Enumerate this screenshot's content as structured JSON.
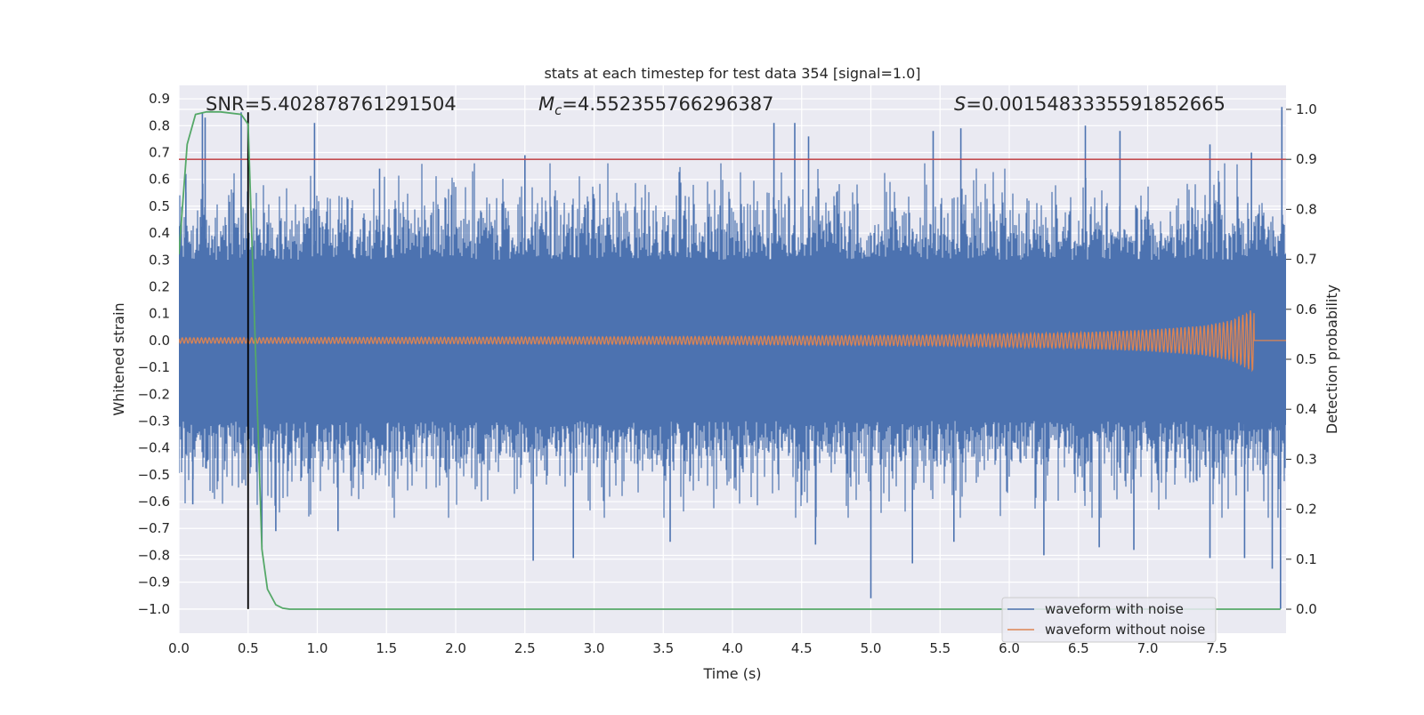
{
  "chart_data": {
    "type": "line",
    "title": "stats at each timestep for test data 354 [signal=1.0]",
    "xlabel": "Time (s)",
    "ylabel": "Whitened strain",
    "ylabel_right": "Detection probability",
    "xlim": [
      0.0,
      8.0
    ],
    "ylim": [
      -1.09,
      0.95
    ],
    "ylim_right": [
      -0.048,
      1.048
    ],
    "grid": true,
    "legend_position": "lower-right",
    "x_ticks": [
      "0.0",
      "0.5",
      "1.0",
      "1.5",
      "2.0",
      "2.5",
      "3.0",
      "3.5",
      "4.0",
      "4.5",
      "5.0",
      "5.5",
      "6.0",
      "6.5",
      "7.0",
      "7.5"
    ],
    "y_ticks": [
      "0.9",
      "0.8",
      "0.7",
      "0.6",
      "0.5",
      "0.4",
      "0.3",
      "0.2",
      "0.1",
      "0.0",
      "−0.1",
      "−0.2",
      "−0.3",
      "−0.4",
      "−0.5",
      "−0.6",
      "−0.7",
      "−0.8",
      "−0.9",
      "−1.0"
    ],
    "y_ticks_right": [
      "1.0",
      "0.9",
      "0.8",
      "0.7",
      "0.6",
      "0.5",
      "0.4",
      "0.3",
      "0.2",
      "0.1",
      "0.0"
    ],
    "annotations": {
      "snr": {
        "prefix": "SNR",
        "value": "=5.402878761291504",
        "x": 0.2,
        "y": 0.9
      },
      "mc": {
        "prefix": "M",
        "sub": "c",
        "value": "=4.552355766296387",
        "x": 2.6,
        "y": 0.9
      },
      "s": {
        "prefix": "S",
        "value": "=0.0015483335591852665",
        "x": 5.6,
        "y": 0.9
      }
    },
    "threshold": {
      "y_right": 0.9,
      "color": "#c44e52"
    },
    "event_line": {
      "x": 0.5,
      "y_start": -1.0,
      "y_end": 0.85,
      "color": "#000000"
    },
    "series": [
      {
        "name": "waveform with noise",
        "color": "#4c72b0",
        "axis": "left",
        "duration": 8.0,
        "core_amplitude": 0.3,
        "peaks_up": [
          [
            0.05,
            0.62
          ],
          [
            0.17,
            0.85
          ],
          [
            0.19,
            0.83
          ],
          [
            0.45,
            0.85
          ],
          [
            0.98,
            0.81
          ],
          [
            1.45,
            0.64
          ],
          [
            2.5,
            0.69
          ],
          [
            4.3,
            0.81
          ],
          [
            4.45,
            0.81
          ],
          [
            4.55,
            0.76
          ],
          [
            5.45,
            0.78
          ],
          [
            5.65,
            0.79
          ],
          [
            6.55,
            0.8
          ],
          [
            6.8,
            0.78
          ],
          [
            7.45,
            0.73
          ],
          [
            7.75,
            0.7
          ],
          [
            7.97,
            0.87
          ]
        ],
        "peaks_down": [
          [
            0.1,
            -0.61
          ],
          [
            0.6,
            -0.77
          ],
          [
            0.7,
            -0.71
          ],
          [
            1.15,
            -0.71
          ],
          [
            2.56,
            -0.82
          ],
          [
            2.85,
            -0.81
          ],
          [
            3.55,
            -0.75
          ],
          [
            4.6,
            -0.76
          ],
          [
            5.0,
            -0.96
          ],
          [
            5.3,
            -0.83
          ],
          [
            5.6,
            -0.75
          ],
          [
            6.25,
            -0.8
          ],
          [
            6.65,
            -0.77
          ],
          [
            6.9,
            -0.78
          ],
          [
            7.45,
            -0.81
          ],
          [
            7.7,
            -0.81
          ],
          [
            7.9,
            -0.85
          ],
          [
            7.96,
            -1.0
          ]
        ]
      },
      {
        "name": "waveform without noise",
        "color": "#dd8452",
        "axis": "left",
        "merger_time": 7.77,
        "envelope": {
          "x": [
            0.0,
            2.0,
            4.0,
            5.5,
            6.5,
            7.0,
            7.4,
            7.6,
            7.7,
            7.77
          ],
          "amplitude": [
            0.01,
            0.012,
            0.015,
            0.02,
            0.03,
            0.04,
            0.055,
            0.075,
            0.1,
            0.12
          ]
        }
      },
      {
        "name": "detection probability",
        "color": "#55a868",
        "axis": "right",
        "x": [
          0.0,
          0.06,
          0.12,
          0.2,
          0.3,
          0.45,
          0.5,
          0.55,
          0.6,
          0.64,
          0.7,
          0.75,
          0.8,
          1.0,
          2.0,
          4.0,
          6.0,
          7.96
        ],
        "values": [
          0.71,
          0.93,
          0.99,
          0.995,
          0.995,
          0.99,
          0.97,
          0.55,
          0.12,
          0.04,
          0.009,
          0.002,
          0.0,
          0.0,
          0.0,
          0.0,
          0.0,
          0.0
        ]
      }
    ]
  }
}
